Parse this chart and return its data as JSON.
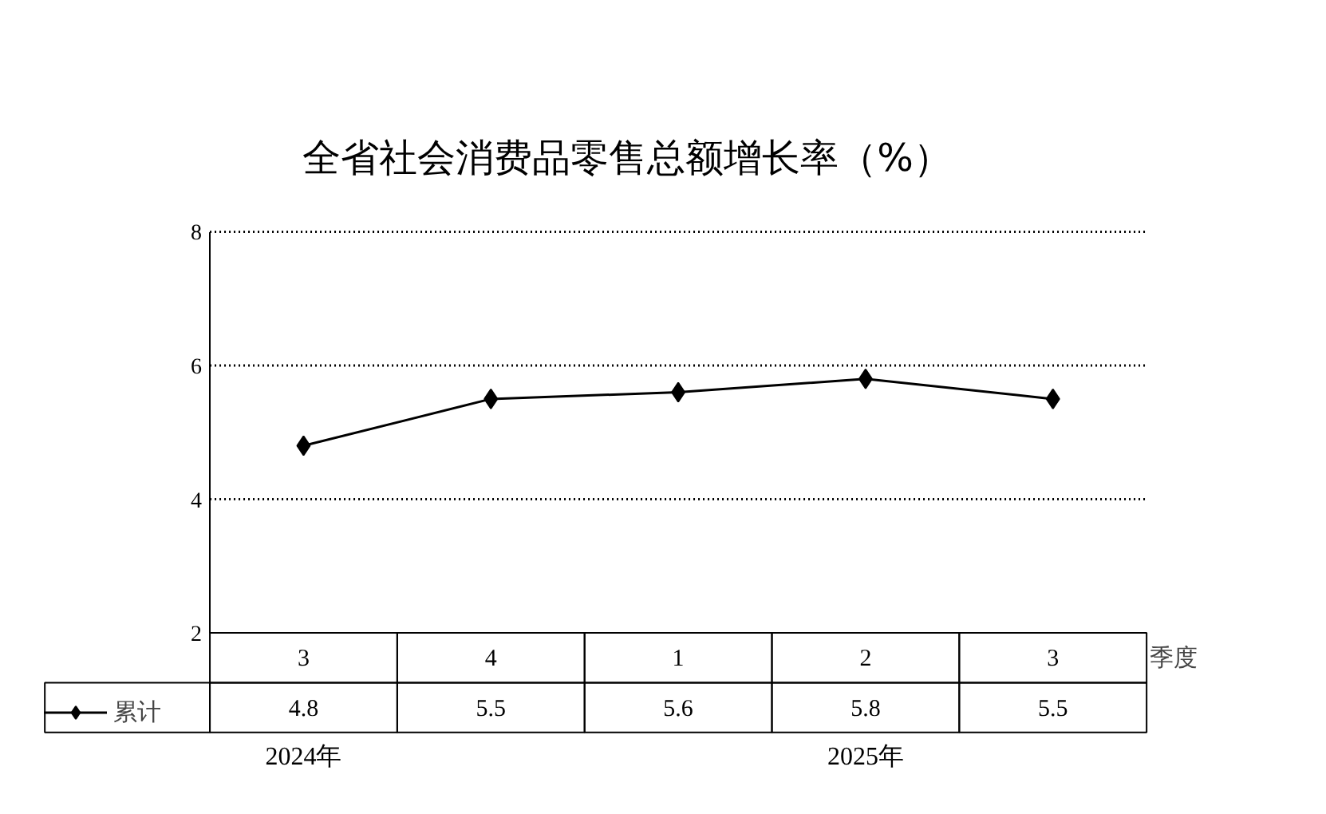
{
  "chart_data": {
    "type": "line",
    "title": "全省社会消费品零售总额增长率（%）",
    "xlabel": "季度",
    "categories": [
      "3",
      "4",
      "1",
      "2",
      "3"
    ],
    "series": [
      {
        "name": "累计",
        "color": "#000000",
        "values": [
          4.8,
          5.5,
          5.6,
          5.8,
          5.5
        ]
      }
    ],
    "ylim": [
      2,
      8
    ],
    "yticks": [
      2,
      4,
      6,
      8
    ],
    "grid": "y",
    "marker": "diamond",
    "legend": "bottom left",
    "data_labels": true,
    "annotations": [
      "2024年",
      "2025年"
    ]
  }
}
